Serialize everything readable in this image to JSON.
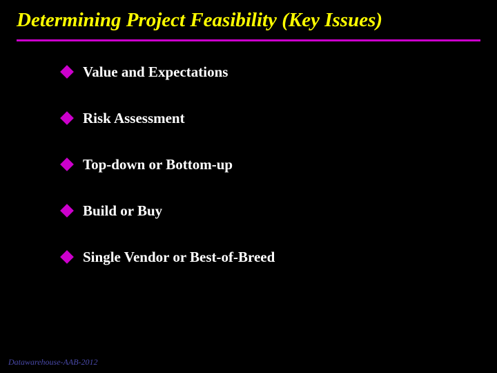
{
  "slide": {
    "title": "Determining Project Feasibility (Key Issues)",
    "title_color": "#ffff00",
    "title_fontsize": 29,
    "background_color": "#000000",
    "divider_color": "#cc00cc",
    "bullet_marker_color": "#cc00cc",
    "bullet_text_color": "#ffffff",
    "bullet_fontsize": 21,
    "bullets": [
      {
        "text": "Value and Expectations"
      },
      {
        "text": "Risk Assessment"
      },
      {
        "text": "Top-down or Bottom-up"
      },
      {
        "text": "Build or Buy"
      },
      {
        "text": "Single Vendor or Best-of-Breed"
      }
    ],
    "footer": "Datawarehouse-AAB-2012",
    "footer_color": "#4a4aaa"
  }
}
